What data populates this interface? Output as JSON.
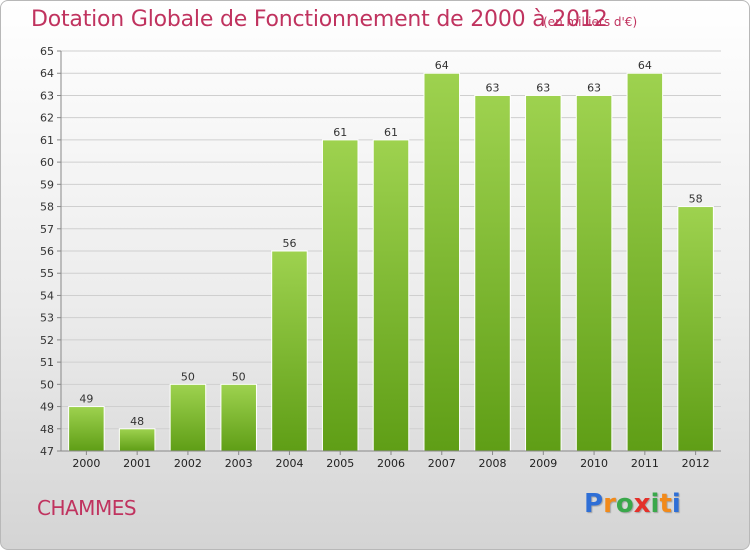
{
  "title": "Dotation Globale de Fonctionnement de 2000 à 2012",
  "subtitle": "(en milliers d'€)",
  "commune": "CHAMMES",
  "logo": {
    "text": "Proxiti",
    "letters": [
      {
        "ch": "P",
        "color": "#2f6fd6"
      },
      {
        "ch": "r",
        "color": "#f28a1a"
      },
      {
        "ch": "o",
        "color": "#3aa84b"
      },
      {
        "ch": "x",
        "color": "#e4302a"
      },
      {
        "ch": "i",
        "color": "#3aa84b"
      },
      {
        "ch": "t",
        "color": "#f28a1a"
      },
      {
        "ch": "i",
        "color": "#2f6fd6"
      }
    ]
  },
  "colors": {
    "title": "#c0335f",
    "bar_light": "#9ed24f",
    "bar_dark": "#5f9e16",
    "grid": "#cfcfcf"
  },
  "chart_data": {
    "type": "bar",
    "title": "Dotation Globale de Fonctionnement de 2000 à 2012",
    "subtitle": "(en milliers d'€)",
    "categories": [
      "2000",
      "2001",
      "2002",
      "2003",
      "2004",
      "2005",
      "2006",
      "2007",
      "2008",
      "2009",
      "2010",
      "2011",
      "2012"
    ],
    "values": [
      49,
      48,
      50,
      50,
      56,
      61,
      61,
      64,
      63,
      63,
      63,
      64,
      58
    ],
    "ylim": [
      47,
      65
    ],
    "yticks": [
      47,
      48,
      49,
      50,
      51,
      52,
      53,
      54,
      55,
      56,
      57,
      58,
      59,
      60,
      61,
      62,
      63,
      64,
      65
    ],
    "grid": true,
    "data_labels": true
  }
}
